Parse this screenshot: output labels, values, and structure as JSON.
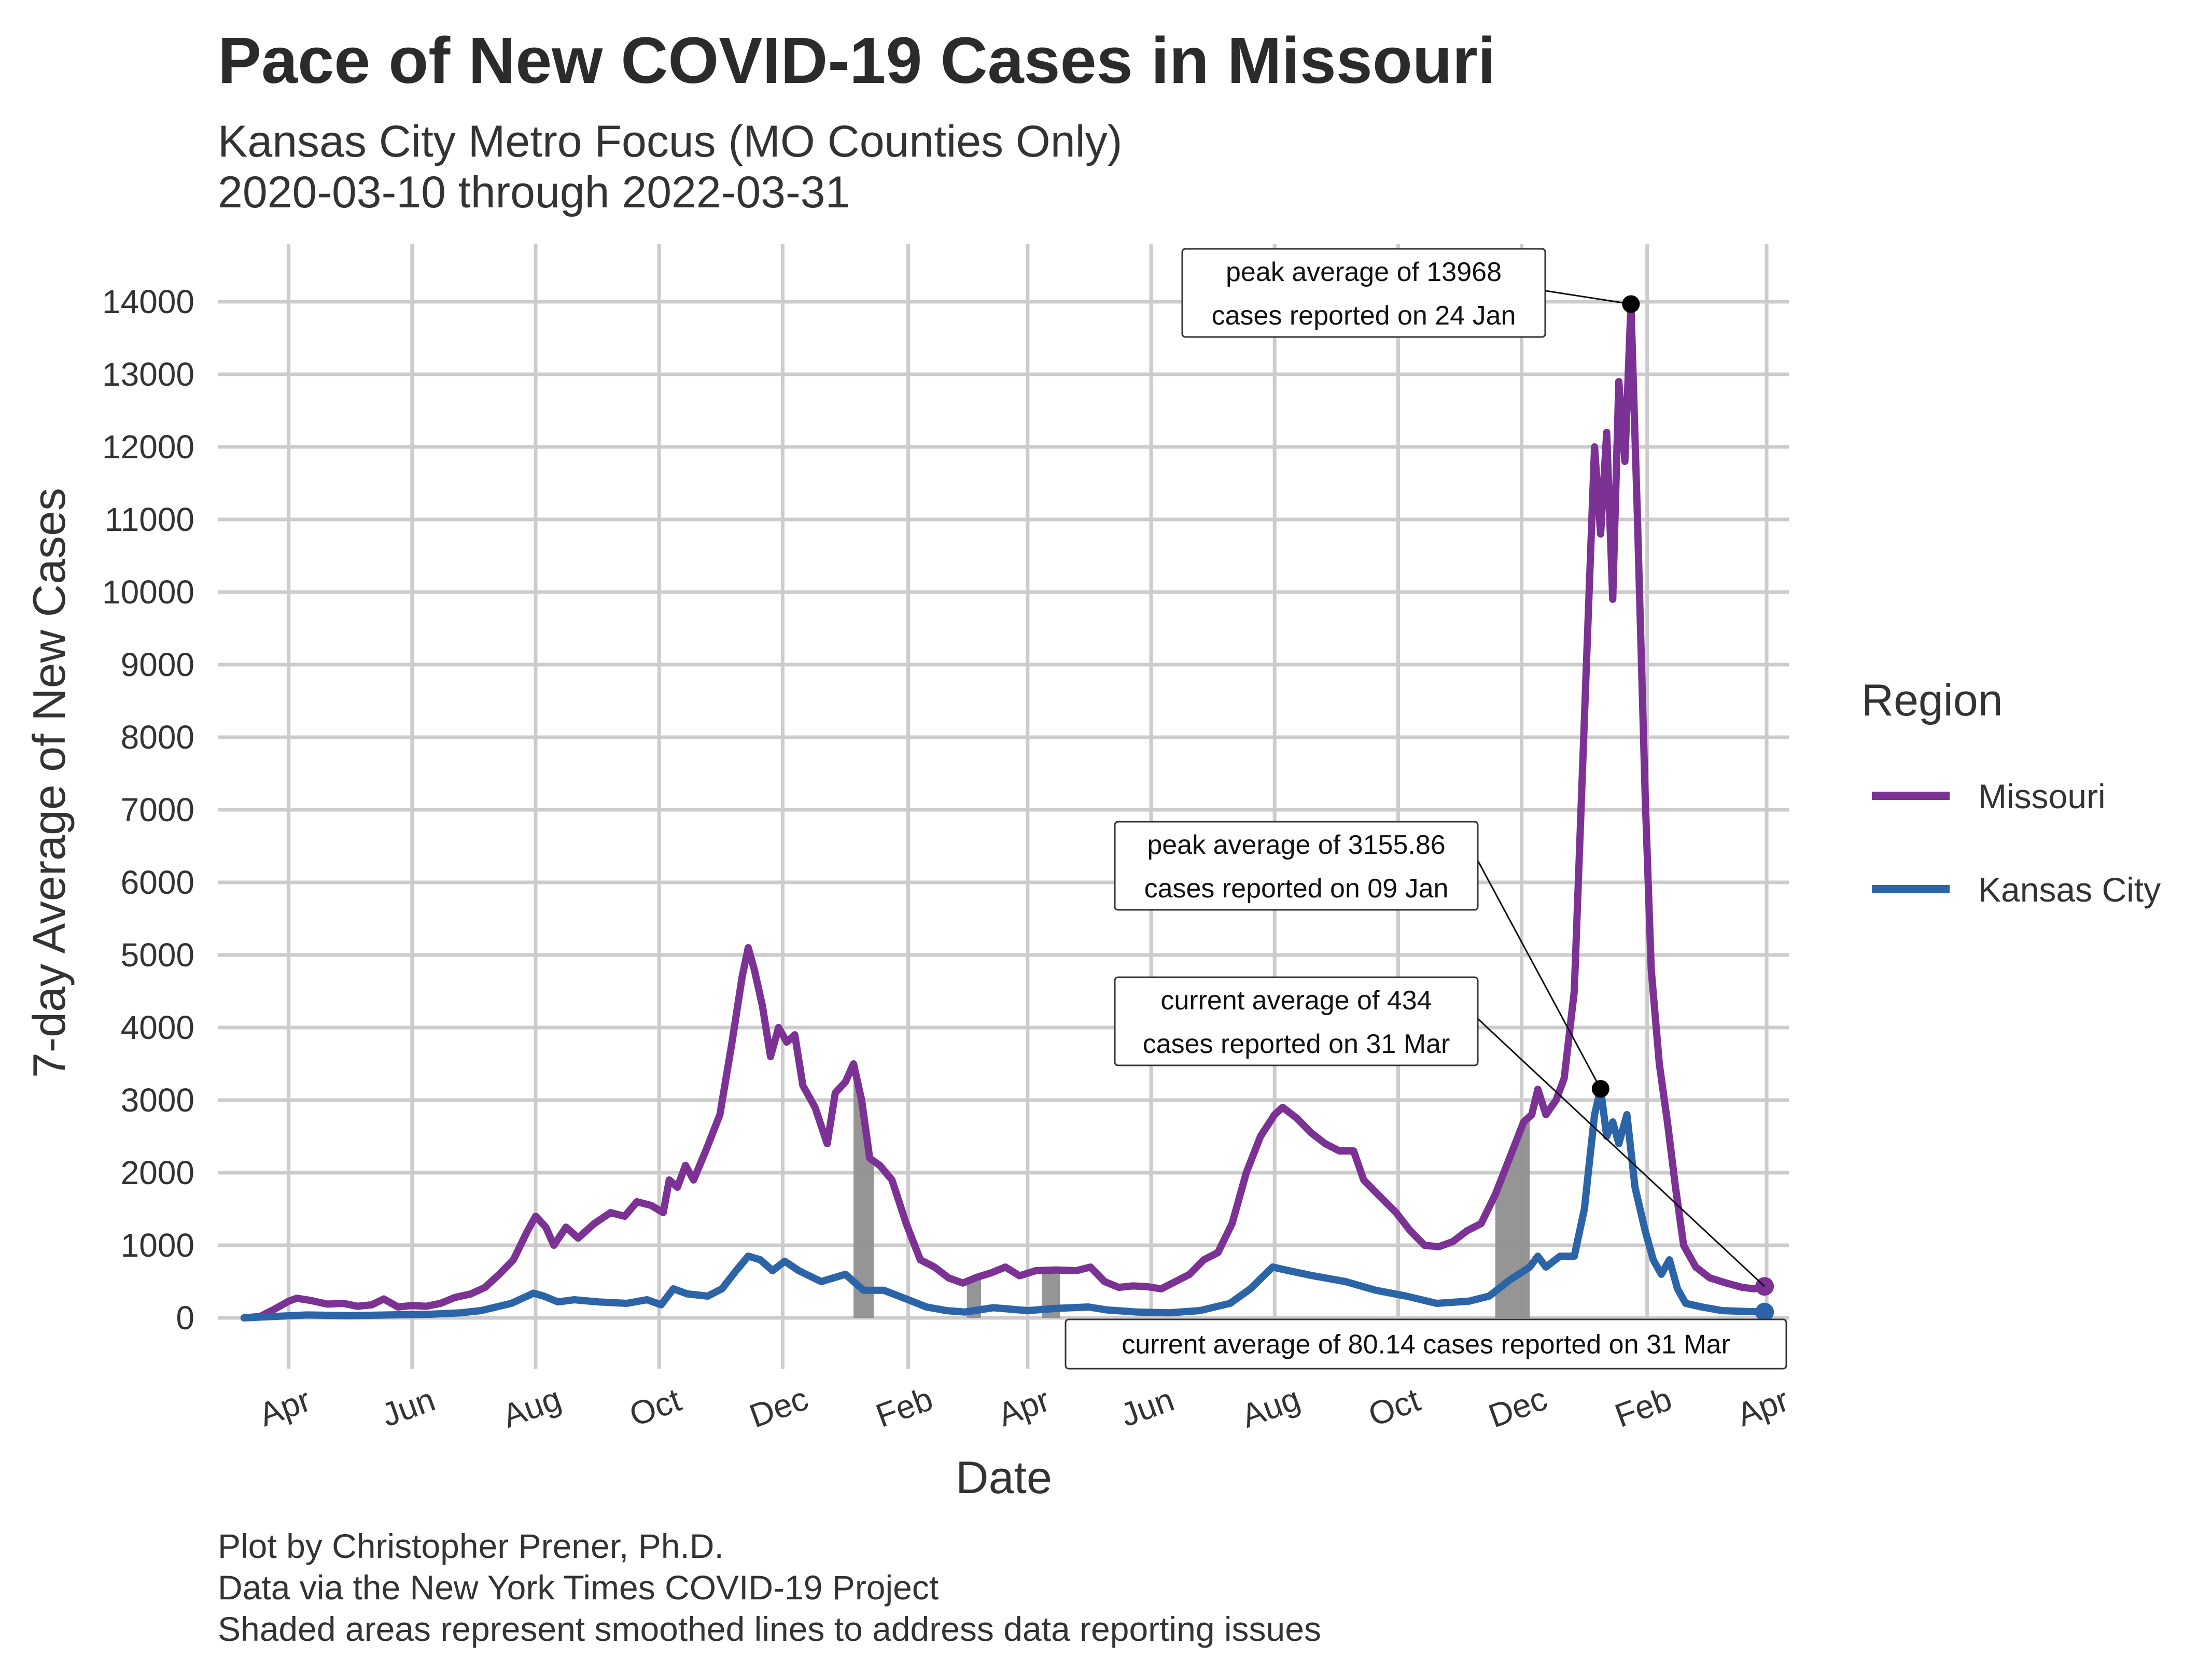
{
  "chart_data": {
    "type": "line",
    "title": "Pace of New COVID-19 Cases in Missouri",
    "subtitle_lines": [
      "Kansas City Metro Focus (MO Counties Only)",
      "2020-03-10 through 2022-03-31"
    ],
    "xlabel": "Date",
    "ylabel": "7-day Average of New Cases",
    "x_tick_labels": [
      "Apr",
      "Jun",
      "Aug",
      "Oct",
      "Dec",
      "Feb",
      "Apr",
      "Jun",
      "Aug",
      "Oct",
      "Dec",
      "Feb",
      "Apr"
    ],
    "x_tick_dates": [
      "2020-04-01",
      "2020-06-01",
      "2020-08-01",
      "2020-10-01",
      "2020-12-01",
      "2021-02-01",
      "2021-04-01",
      "2021-06-01",
      "2021-08-01",
      "2021-10-01",
      "2021-12-01",
      "2022-02-01",
      "2022-04-01"
    ],
    "xlim": [
      "2020-02-26",
      "2022-04-12"
    ],
    "ylim": [
      -700,
      14800
    ],
    "y_ticks": [
      0,
      1000,
      2000,
      3000,
      4000,
      5000,
      6000,
      7000,
      8000,
      9000,
      10000,
      11000,
      12000,
      13000,
      14000
    ],
    "legend_title": "Region",
    "series": [
      {
        "name": "Missouri",
        "color": "#7b3294",
        "points": [
          [
            "2020-03-10",
            0
          ],
          [
            "2020-03-18",
            20
          ],
          [
            "2020-03-25",
            120
          ],
          [
            "2020-04-01",
            230
          ],
          [
            "2020-04-05",
            270
          ],
          [
            "2020-04-12",
            240
          ],
          [
            "2020-04-20",
            190
          ],
          [
            "2020-04-28",
            200
          ],
          [
            "2020-05-05",
            160
          ],
          [
            "2020-05-12",
            180
          ],
          [
            "2020-05-18",
            260
          ],
          [
            "2020-05-25",
            150
          ],
          [
            "2020-06-01",
            170
          ],
          [
            "2020-06-08",
            160
          ],
          [
            "2020-06-15",
            200
          ],
          [
            "2020-06-22",
            280
          ],
          [
            "2020-06-30",
            330
          ],
          [
            "2020-07-07",
            420
          ],
          [
            "2020-07-14",
            600
          ],
          [
            "2020-07-21",
            800
          ],
          [
            "2020-07-28",
            1200
          ],
          [
            "2020-08-01",
            1400
          ],
          [
            "2020-08-06",
            1250
          ],
          [
            "2020-08-10",
            1000
          ],
          [
            "2020-08-16",
            1250
          ],
          [
            "2020-08-22",
            1100
          ],
          [
            "2020-08-30",
            1300
          ],
          [
            "2020-09-07",
            1450
          ],
          [
            "2020-09-14",
            1400
          ],
          [
            "2020-09-20",
            1600
          ],
          [
            "2020-09-27",
            1550
          ],
          [
            "2020-10-03",
            1450
          ],
          [
            "2020-10-06",
            1900
          ],
          [
            "2020-10-10",
            1800
          ],
          [
            "2020-10-14",
            2100
          ],
          [
            "2020-10-18",
            1900
          ],
          [
            "2020-10-24",
            2300
          ],
          [
            "2020-10-31",
            2800
          ],
          [
            "2020-11-06",
            3800
          ],
          [
            "2020-11-11",
            4700
          ],
          [
            "2020-11-14",
            5100
          ],
          [
            "2020-11-17",
            4800
          ],
          [
            "2020-11-21",
            4300
          ],
          [
            "2020-11-25",
            3600
          ],
          [
            "2020-11-29",
            4000
          ],
          [
            "2020-12-03",
            3800
          ],
          [
            "2020-12-07",
            3900
          ],
          [
            "2020-12-11",
            3200
          ],
          [
            "2020-12-17",
            2900
          ],
          [
            "2020-12-23",
            2400
          ],
          [
            "2020-12-27",
            3100
          ],
          [
            "2021-01-01",
            3250
          ],
          [
            "2021-01-05",
            3500
          ],
          [
            "2021-01-09",
            3000
          ],
          [
            "2021-01-13",
            2200
          ],
          [
            "2021-01-18",
            2100
          ],
          [
            "2021-01-24",
            1900
          ],
          [
            "2021-01-31",
            1300
          ],
          [
            "2021-02-07",
            800
          ],
          [
            "2021-02-14",
            700
          ],
          [
            "2021-02-21",
            550
          ],
          [
            "2021-02-28",
            480
          ],
          [
            "2021-03-07",
            560
          ],
          [
            "2021-03-14",
            620
          ],
          [
            "2021-03-21",
            700
          ],
          [
            "2021-03-28",
            580
          ],
          [
            "2021-04-05",
            650
          ],
          [
            "2021-04-15",
            660
          ],
          [
            "2021-04-25",
            650
          ],
          [
            "2021-05-02",
            700
          ],
          [
            "2021-05-09",
            500
          ],
          [
            "2021-05-16",
            420
          ],
          [
            "2021-05-23",
            440
          ],
          [
            "2021-05-30",
            430
          ],
          [
            "2021-06-06",
            400
          ],
          [
            "2021-06-13",
            500
          ],
          [
            "2021-06-20",
            600
          ],
          [
            "2021-06-27",
            800
          ],
          [
            "2021-07-04",
            900
          ],
          [
            "2021-07-11",
            1300
          ],
          [
            "2021-07-18",
            2000
          ],
          [
            "2021-07-25",
            2500
          ],
          [
            "2021-08-01",
            2800
          ],
          [
            "2021-08-05",
            2900
          ],
          [
            "2021-08-12",
            2750
          ],
          [
            "2021-08-19",
            2550
          ],
          [
            "2021-08-26",
            2400
          ],
          [
            "2021-09-02",
            2300
          ],
          [
            "2021-09-09",
            2300
          ],
          [
            "2021-09-14",
            1900
          ],
          [
            "2021-09-21",
            1700
          ],
          [
            "2021-09-30",
            1450
          ],
          [
            "2021-10-07",
            1200
          ],
          [
            "2021-10-14",
            1000
          ],
          [
            "2021-10-21",
            980
          ],
          [
            "2021-10-28",
            1050
          ],
          [
            "2021-11-04",
            1200
          ],
          [
            "2021-11-11",
            1300
          ],
          [
            "2021-11-18",
            1700
          ],
          [
            "2021-11-25",
            2200
          ],
          [
            "2021-12-02",
            2700
          ],
          [
            "2021-12-06",
            2800
          ],
          [
            "2021-12-09",
            3150
          ],
          [
            "2021-12-13",
            2800
          ],
          [
            "2021-12-18",
            3000
          ],
          [
            "2021-12-22",
            3300
          ],
          [
            "2021-12-27",
            4500
          ],
          [
            "2022-01-02",
            9000
          ],
          [
            "2022-01-06",
            12000
          ],
          [
            "2022-01-09",
            10800
          ],
          [
            "2022-01-12",
            12200
          ],
          [
            "2022-01-15",
            9900
          ],
          [
            "2022-01-18",
            12900
          ],
          [
            "2022-01-21",
            11800
          ],
          [
            "2022-01-24",
            13968
          ],
          [
            "2022-01-27",
            11200
          ],
          [
            "2022-01-31",
            7200
          ],
          [
            "2022-02-03",
            4800
          ],
          [
            "2022-02-07",
            3500
          ],
          [
            "2022-02-11",
            2700
          ],
          [
            "2022-02-15",
            1800
          ],
          [
            "2022-02-19",
            1000
          ],
          [
            "2022-02-25",
            700
          ],
          [
            "2022-03-04",
            550
          ],
          [
            "2022-03-12",
            480
          ],
          [
            "2022-03-20",
            420
          ],
          [
            "2022-03-26",
            400
          ],
          [
            "2022-03-31",
            434
          ]
        ]
      },
      {
        "name": "Kansas City",
        "color": "#2c64a8",
        "points": [
          [
            "2020-03-10",
            0
          ],
          [
            "2020-03-25",
            20
          ],
          [
            "2020-04-10",
            40
          ],
          [
            "2020-05-01",
            30
          ],
          [
            "2020-05-20",
            40
          ],
          [
            "2020-06-10",
            50
          ],
          [
            "2020-06-25",
            70
          ],
          [
            "2020-07-05",
            100
          ],
          [
            "2020-07-20",
            200
          ],
          [
            "2020-07-31",
            340
          ],
          [
            "2020-08-05",
            300
          ],
          [
            "2020-08-12",
            220
          ],
          [
            "2020-08-20",
            250
          ],
          [
            "2020-09-01",
            220
          ],
          [
            "2020-09-15",
            200
          ],
          [
            "2020-09-25",
            250
          ],
          [
            "2020-10-02",
            180
          ],
          [
            "2020-10-08",
            400
          ],
          [
            "2020-10-15",
            330
          ],
          [
            "2020-10-25",
            300
          ],
          [
            "2020-11-01",
            400
          ],
          [
            "2020-11-08",
            650
          ],
          [
            "2020-11-14",
            850
          ],
          [
            "2020-11-20",
            800
          ],
          [
            "2020-11-26",
            650
          ],
          [
            "2020-12-02",
            780
          ],
          [
            "2020-12-09",
            650
          ],
          [
            "2020-12-20",
            500
          ],
          [
            "2021-01-01",
            600
          ],
          [
            "2021-01-10",
            380
          ],
          [
            "2021-01-20",
            380
          ],
          [
            "2021-02-01",
            250
          ],
          [
            "2021-02-10",
            150
          ],
          [
            "2021-02-20",
            100
          ],
          [
            "2021-03-01",
            80
          ],
          [
            "2021-03-15",
            140
          ],
          [
            "2021-04-01",
            100
          ],
          [
            "2021-04-15",
            130
          ],
          [
            "2021-05-01",
            150
          ],
          [
            "2021-05-10",
            110
          ],
          [
            "2021-05-25",
            80
          ],
          [
            "2021-06-10",
            70
          ],
          [
            "2021-06-25",
            100
          ],
          [
            "2021-07-10",
            200
          ],
          [
            "2021-07-20",
            400
          ],
          [
            "2021-07-31",
            700
          ],
          [
            "2021-08-08",
            650
          ],
          [
            "2021-08-20",
            580
          ],
          [
            "2021-09-05",
            500
          ],
          [
            "2021-09-20",
            380
          ],
          [
            "2021-10-05",
            300
          ],
          [
            "2021-10-20",
            200
          ],
          [
            "2021-11-05",
            230
          ],
          [
            "2021-11-15",
            300
          ],
          [
            "2021-11-25",
            520
          ],
          [
            "2021-12-05",
            700
          ],
          [
            "2021-12-09",
            850
          ],
          [
            "2021-12-13",
            700
          ],
          [
            "2021-12-20",
            850
          ],
          [
            "2021-12-27",
            850
          ],
          [
            "2022-01-01",
            1500
          ],
          [
            "2022-01-06",
            2800
          ],
          [
            "2022-01-09",
            3155.86
          ],
          [
            "2022-01-12",
            2500
          ],
          [
            "2022-01-15",
            2700
          ],
          [
            "2022-01-18",
            2400
          ],
          [
            "2022-01-22",
            2800
          ],
          [
            "2022-01-26",
            1800
          ],
          [
            "2022-01-31",
            1200
          ],
          [
            "2022-02-04",
            800
          ],
          [
            "2022-02-08",
            600
          ],
          [
            "2022-02-12",
            800
          ],
          [
            "2022-02-16",
            400
          ],
          [
            "2022-02-20",
            200
          ],
          [
            "2022-02-28",
            150
          ],
          [
            "2022-03-10",
            100
          ],
          [
            "2022-03-20",
            90
          ],
          [
            "2022-03-31",
            80.14
          ]
        ]
      }
    ],
    "shaded_note_regions": [
      {
        "start": "2021-01-05",
        "end": "2021-01-15"
      },
      {
        "start": "2021-03-02",
        "end": "2021-03-09"
      },
      {
        "start": "2021-04-08",
        "end": "2021-04-17"
      },
      {
        "start": "2021-11-18",
        "end": "2021-12-05"
      }
    ],
    "annotations": [
      {
        "series": "Missouri",
        "date": "2022-01-24",
        "value": 13968,
        "lines": [
          "peak average of 13968",
          "cases reported on 24 Jan"
        ]
      },
      {
        "series": "Kansas City",
        "date": "2022-01-09",
        "value": 3155.86,
        "lines": [
          "peak average of 3155.86",
          "cases reported on 09 Jan"
        ]
      },
      {
        "series": "Missouri",
        "date": "2022-03-31",
        "value": 434,
        "lines": [
          "current average of 434",
          "cases reported on 31 Mar"
        ]
      },
      {
        "series": "Kansas City",
        "date": "2022-03-31",
        "value": 80.14,
        "lines": [
          "current average of 80.14 cases reported on 31 Mar"
        ]
      }
    ],
    "caption_lines": [
      "Plot by Christopher Prener, Ph.D.",
      "Data via the New York Times COVID-19 Project",
      "Shaded areas represent smoothed lines to address data reporting issues"
    ]
  }
}
